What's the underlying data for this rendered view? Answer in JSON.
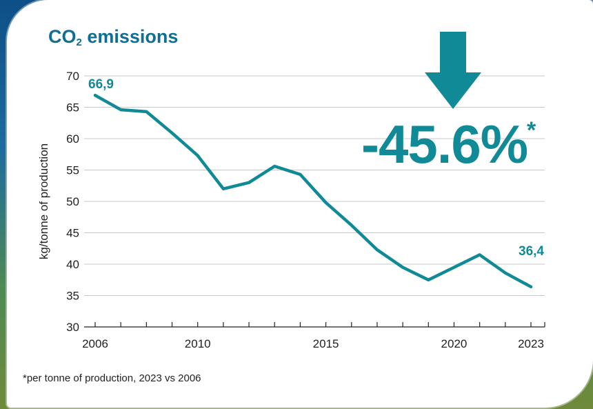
{
  "title": {
    "prefix": "CO",
    "subscript": "2",
    "suffix": " emissions"
  },
  "headline": {
    "value": "-45.6%",
    "marker": "*"
  },
  "footnote": "*per tonne of production, 2023 vs 2006",
  "colors": {
    "accent": "#0f8a96",
    "title": "#0f6e93",
    "grid": "#c8c8c8"
  },
  "chart_data": {
    "type": "line",
    "ylabel": "kg/tonne of production",
    "xlabel": "",
    "ylim": [
      30,
      70
    ],
    "xlim": [
      2006,
      2023
    ],
    "yticks": [
      30,
      35,
      40,
      45,
      50,
      55,
      60,
      65,
      70
    ],
    "xtick_labels": [
      "2006",
      "2010",
      "2015",
      "2020",
      "2023"
    ],
    "grid": true,
    "series": [
      {
        "x": [
          2006,
          2007,
          2008,
          2009,
          2010,
          2011,
          2012,
          2013,
          2014,
          2015,
          2016,
          2017,
          2018,
          2019,
          2020,
          2021,
          2022,
          2023
        ],
        "y": [
          66.9,
          64.6,
          64.3,
          60.9,
          57.3,
          52.0,
          53.0,
          55.6,
          54.3,
          49.8,
          46.2,
          42.3,
          39.5,
          37.5,
          39.5,
          41.5,
          38.6,
          36.4
        ]
      }
    ],
    "data_labels": [
      {
        "x": 2006,
        "text": "66,9"
      },
      {
        "x": 2023,
        "text": "36,4"
      }
    ]
  }
}
